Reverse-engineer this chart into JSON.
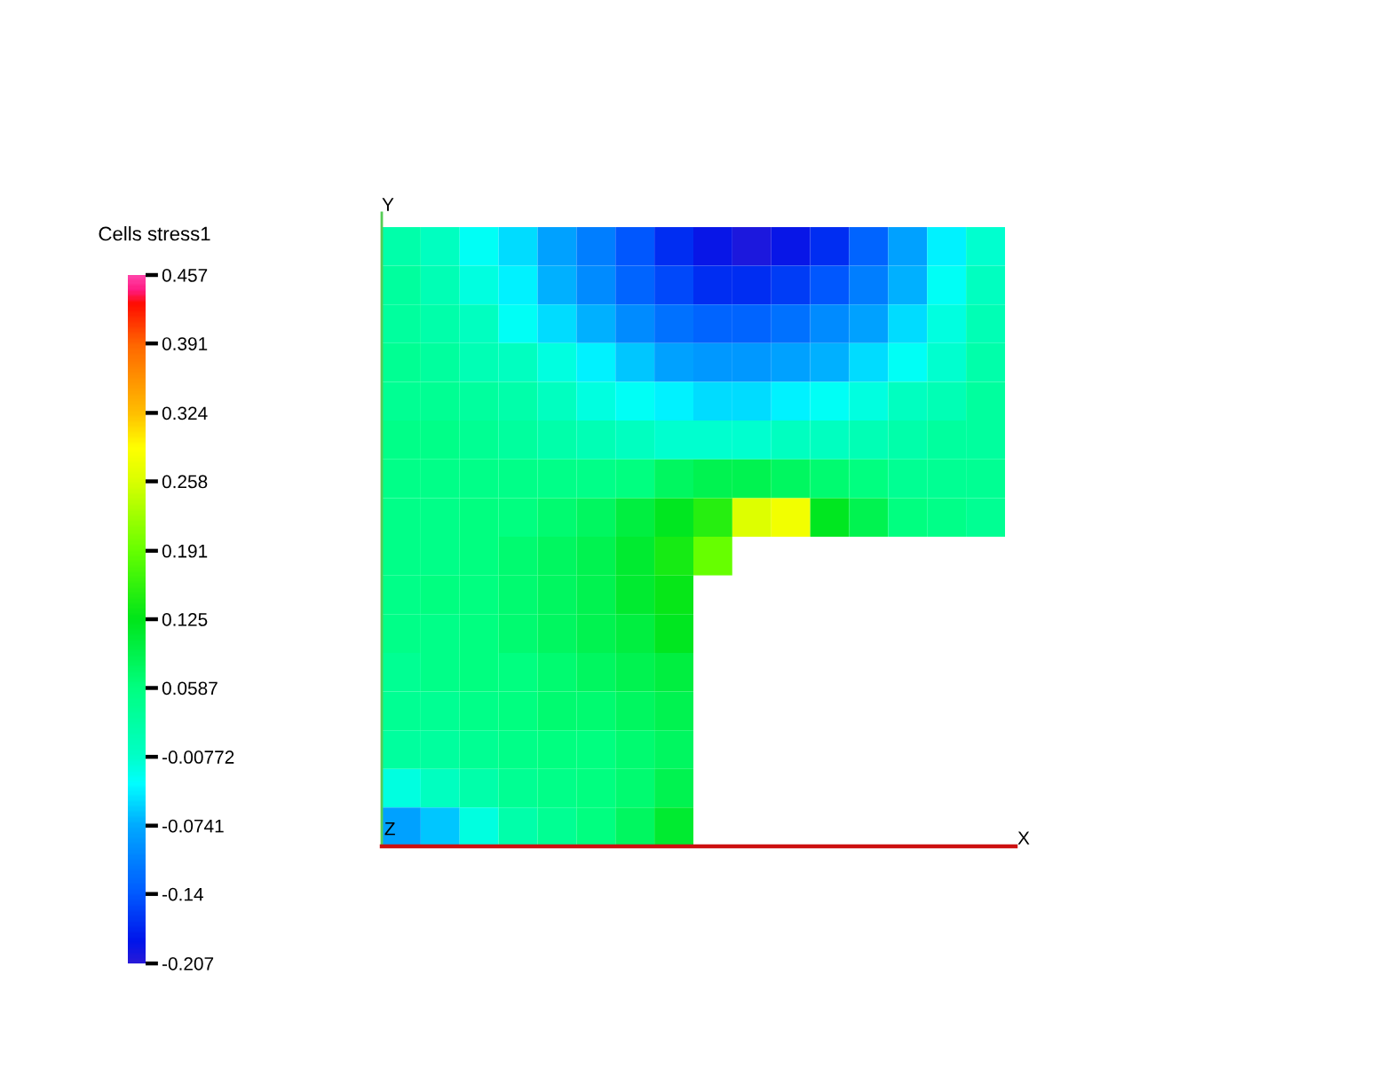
{
  "chart_data": {
    "type": "heatmap",
    "clabel": "Cells stress1",
    "annotations": [
      "Y",
      "Z",
      "X"
    ],
    "categories": [
      null,
      null,
      null,
      null,
      null,
      null,
      null,
      null,
      null,
      null,
      null,
      null,
      null,
      null,
      null,
      null
    ],
    "y_categories": [
      null,
      null,
      null,
      null,
      null,
      null,
      null,
      null,
      null,
      null,
      null,
      null,
      null,
      null,
      null,
      null
    ],
    "clim": [
      -0.207,
      0.457
    ],
    "cticks": [
      -0.207,
      -0.14,
      -0.0741,
      -0.00772,
      0.0587,
      0.125,
      0.191,
      0.258,
      0.324,
      0.391,
      0.457
    ],
    "cells": [
      [
        0.02,
        0.0,
        -0.03,
        -0.05,
        -0.08,
        -0.11,
        -0.14,
        -0.17,
        -0.19,
        -0.2,
        -0.19,
        -0.17,
        -0.13,
        -0.08,
        -0.04,
        -0.01
      ],
      [
        0.03,
        0.01,
        -0.02,
        -0.04,
        -0.07,
        -0.1,
        -0.13,
        -0.15,
        -0.17,
        -0.17,
        -0.16,
        -0.14,
        -0.11,
        -0.07,
        -0.03,
        0.0
      ],
      [
        0.03,
        0.02,
        0.0,
        -0.03,
        -0.05,
        -0.07,
        -0.1,
        -0.12,
        -0.13,
        -0.13,
        -0.12,
        -0.1,
        -0.08,
        -0.05,
        -0.02,
        0.01
      ],
      [
        0.04,
        0.03,
        0.01,
        0.0,
        -0.02,
        -0.04,
        -0.06,
        -0.08,
        -0.09,
        -0.09,
        -0.08,
        -0.07,
        -0.05,
        -0.03,
        -0.01,
        0.02
      ],
      [
        0.04,
        0.04,
        0.03,
        0.02,
        0.0,
        -0.02,
        -0.03,
        -0.04,
        -0.05,
        -0.05,
        -0.04,
        -0.03,
        -0.02,
        0.0,
        0.01,
        0.03
      ],
      [
        0.05,
        0.05,
        0.04,
        0.03,
        0.02,
        0.01,
        0.0,
        -0.01,
        -0.01,
        -0.01,
        0.0,
        0.0,
        0.01,
        0.02,
        0.03,
        0.03
      ],
      [
        0.05,
        0.05,
        0.05,
        0.05,
        0.05,
        0.05,
        0.06,
        0.08,
        0.09,
        0.09,
        0.08,
        0.07,
        0.06,
        0.04,
        0.04,
        0.04
      ],
      [
        0.05,
        0.05,
        0.06,
        0.06,
        0.07,
        0.08,
        0.1,
        0.12,
        0.15,
        0.26,
        0.28,
        0.12,
        0.09,
        0.06,
        0.05,
        0.04
      ],
      [
        0.05,
        0.05,
        0.06,
        0.07,
        0.08,
        0.09,
        0.11,
        0.14,
        0.19,
        null,
        null,
        null,
        null,
        null,
        null,
        null
      ],
      [
        0.05,
        0.06,
        0.06,
        0.07,
        0.08,
        0.09,
        0.11,
        0.13,
        null,
        null,
        null,
        null,
        null,
        null,
        null,
        null
      ],
      [
        0.05,
        0.05,
        0.06,
        0.07,
        0.08,
        0.09,
        0.1,
        0.12,
        null,
        null,
        null,
        null,
        null,
        null,
        null,
        null
      ],
      [
        0.04,
        0.05,
        0.06,
        0.06,
        0.07,
        0.08,
        0.09,
        0.1,
        null,
        null,
        null,
        null,
        null,
        null,
        null,
        null
      ],
      [
        0.04,
        0.04,
        0.05,
        0.06,
        0.07,
        0.07,
        0.08,
        0.09,
        null,
        null,
        null,
        null,
        null,
        null,
        null,
        null
      ],
      [
        0.03,
        0.03,
        0.04,
        0.05,
        0.06,
        0.06,
        0.07,
        0.08,
        null,
        null,
        null,
        null,
        null,
        null,
        null,
        null
      ],
      [
        -0.02,
        0.0,
        0.02,
        0.04,
        0.05,
        0.06,
        0.07,
        0.09,
        null,
        null,
        null,
        null,
        null,
        null,
        null,
        null
      ],
      [
        -0.08,
        -0.06,
        -0.02,
        0.02,
        0.04,
        0.06,
        0.08,
        0.11,
        null,
        null,
        null,
        null,
        null,
        null,
        null,
        null
      ]
    ]
  }
}
